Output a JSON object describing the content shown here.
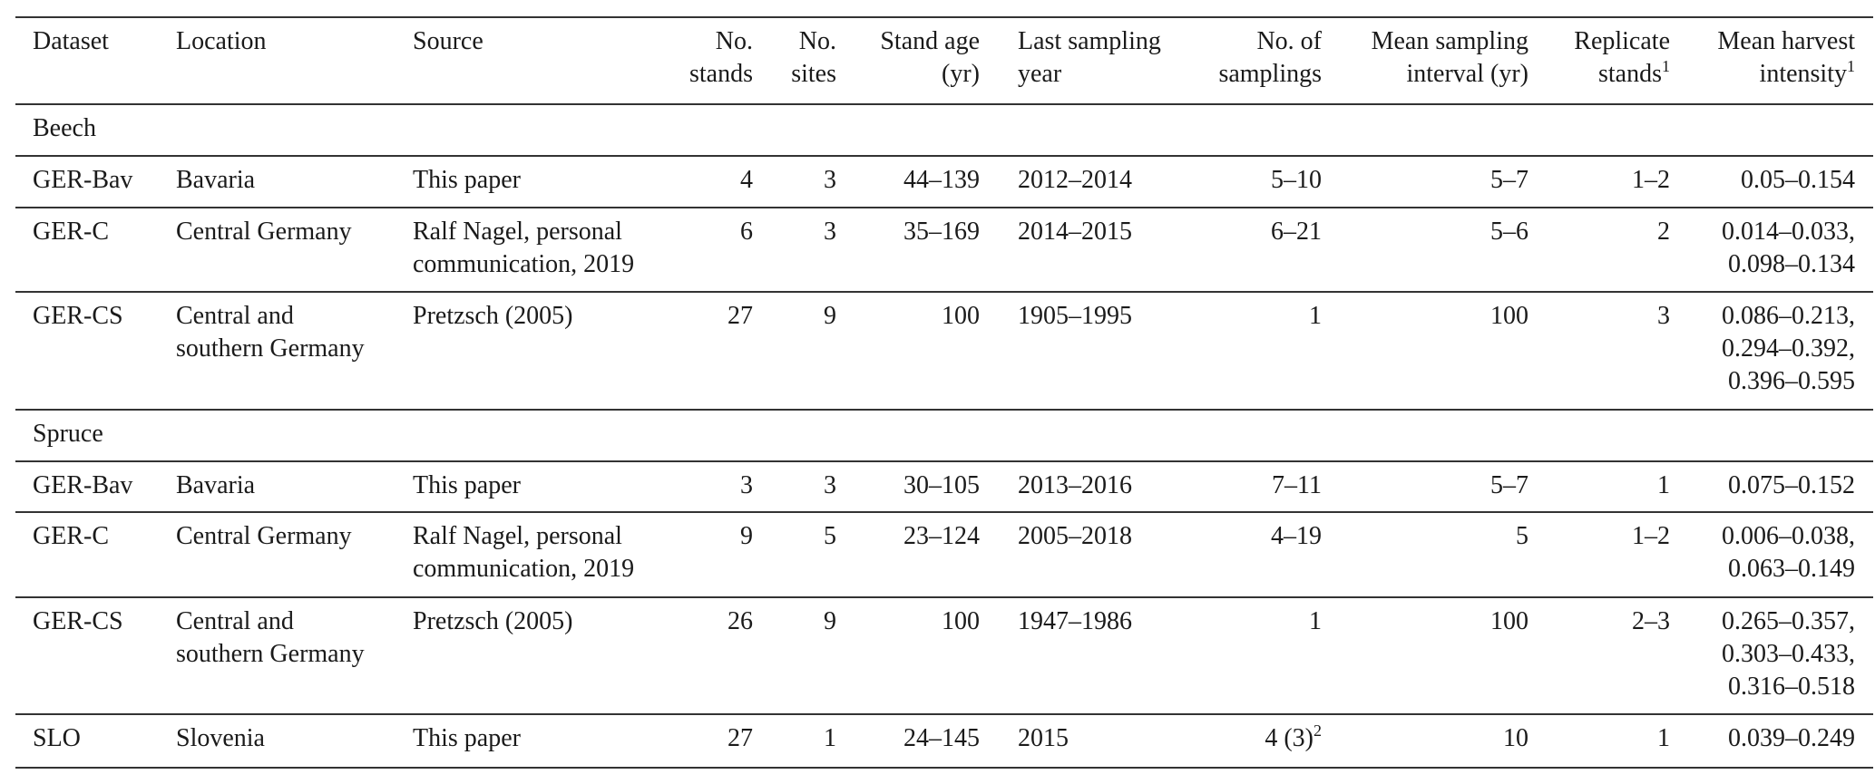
{
  "table": {
    "headers": [
      {
        "lines": [
          "Dataset"
        ]
      },
      {
        "lines": [
          "Location"
        ]
      },
      {
        "lines": [
          "Source"
        ]
      },
      {
        "lines": [
          "No.",
          "stands"
        ]
      },
      {
        "lines": [
          "No.",
          "sites"
        ]
      },
      {
        "lines": [
          "Stand age",
          "(yr)"
        ]
      },
      {
        "lines": [
          "Last sampling",
          "year"
        ]
      },
      {
        "lines": [
          "No. of",
          "samplings"
        ]
      },
      {
        "lines": [
          "Mean sampling",
          "interval (yr)"
        ]
      },
      {
        "lines": [
          "Replicate",
          "stands"
        ],
        "sup": "1"
      },
      {
        "lines": [
          "Mean harvest",
          "intensity"
        ],
        "sup": "1"
      }
    ],
    "sections": [
      {
        "label": "Beech",
        "rows": [
          [
            [
              "GER-Bav"
            ],
            [
              "Bavaria"
            ],
            [
              "This paper"
            ],
            [
              "4"
            ],
            [
              "3"
            ],
            [
              "44–139"
            ],
            [
              "2012–2014"
            ],
            [
              "5–10"
            ],
            [
              "5–7"
            ],
            [
              "1–2"
            ],
            [
              "0.05–0.154"
            ]
          ],
          [
            [
              "GER-C"
            ],
            [
              "Central Germany"
            ],
            [
              "Ralf Nagel, personal",
              "communication, 2019"
            ],
            [
              "6"
            ],
            [
              "3"
            ],
            [
              "35–169"
            ],
            [
              "2014–2015"
            ],
            [
              "6–21"
            ],
            [
              "5–6"
            ],
            [
              "2"
            ],
            [
              "0.014–0.033,",
              "0.098–0.134"
            ]
          ],
          [
            [
              "GER-CS"
            ],
            [
              "Central and",
              "southern Germany"
            ],
            [
              "Pretzsch (2005)"
            ],
            [
              "27"
            ],
            [
              "9"
            ],
            [
              "100"
            ],
            [
              "1905–1995"
            ],
            [
              "1"
            ],
            [
              "100"
            ],
            [
              "3"
            ],
            [
              "0.086–0.213,",
              "0.294–0.392,",
              "0.396–0.595"
            ]
          ]
        ]
      },
      {
        "label": "Spruce",
        "rows": [
          [
            [
              "GER-Bav"
            ],
            [
              "Bavaria"
            ],
            [
              "This paper"
            ],
            [
              "3"
            ],
            [
              "3"
            ],
            [
              "30–105"
            ],
            [
              "2013–2016"
            ],
            [
              "7–11"
            ],
            [
              "5–7"
            ],
            [
              "1"
            ],
            [
              "0.075–0.152"
            ]
          ],
          [
            [
              "GER-C"
            ],
            [
              "Central Germany"
            ],
            [
              "Ralf Nagel, personal",
              "communication, 2019"
            ],
            [
              "9"
            ],
            [
              "5"
            ],
            [
              "23–124"
            ],
            [
              "2005–2018"
            ],
            [
              "4–19"
            ],
            [
              "5"
            ],
            [
              "1–2"
            ],
            [
              "0.006–0.038,",
              "0.063–0.149"
            ]
          ],
          [
            [
              "GER-CS"
            ],
            [
              "Central and",
              "southern Germany"
            ],
            [
              "Pretzsch (2005)"
            ],
            [
              "26"
            ],
            [
              "9"
            ],
            [
              "100"
            ],
            [
              "1947–1986"
            ],
            [
              "1"
            ],
            [
              "100"
            ],
            [
              "2–3"
            ],
            [
              "0.265–0.357,",
              "0.303–0.433,",
              "0.316–0.518"
            ]
          ],
          [
            [
              "SLO"
            ],
            [
              "Slovenia"
            ],
            [
              "This paper"
            ],
            [
              "27"
            ],
            [
              "1"
            ],
            [
              "24–145"
            ],
            [
              "2015"
            ],
            [
              "4 (3)"
            ],
            [
              "10"
            ],
            [
              "1"
            ],
            [
              "0.039–0.249"
            ]
          ]
        ]
      }
    ],
    "footnote_marks": {
      "slo_samplings_sup": "2"
    }
  }
}
